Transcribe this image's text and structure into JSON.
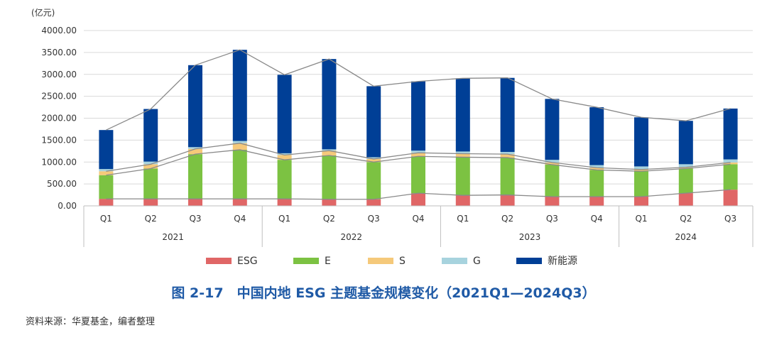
{
  "chart_data": {
    "type": "bar",
    "unit_label": "(亿元)",
    "categories": [
      "Q1",
      "Q2",
      "Q3",
      "Q4",
      "Q1",
      "Q2",
      "Q3",
      "Q4",
      "Q1",
      "Q2",
      "Q3",
      "Q4",
      "Q1",
      "Q2",
      "Q3"
    ],
    "year_groups": [
      {
        "label": "2021",
        "count": 4
      },
      {
        "label": "2022",
        "count": 4
      },
      {
        "label": "2023",
        "count": 4
      },
      {
        "label": "2024",
        "count": 3
      }
    ],
    "y_ticks": [
      "0.00",
      "500.00",
      "1000.00",
      "1500.00",
      "2000.00",
      "2500.00",
      "3000.00",
      "3500.00",
      "4000.00"
    ],
    "ylim": [
      0,
      4000
    ],
    "series": [
      {
        "name": "ESG",
        "color": "#e06666",
        "values": [
          160,
          160,
          160,
          160,
          160,
          150,
          150,
          290,
          240,
          250,
          210,
          210,
          210,
          290,
          370
        ]
      },
      {
        "name": "E",
        "color": "#7cc242",
        "values": [
          540,
          690,
          1020,
          1120,
          890,
          1000,
          850,
          840,
          870,
          850,
          730,
          610,
          580,
          560,
          580
        ]
      },
      {
        "name": "S",
        "color": "#f5c97a",
        "values": [
          90,
          100,
          120,
          150,
          110,
          110,
          70,
          80,
          80,
          80,
          50,
          50,
          40,
          30,
          40
        ]
      },
      {
        "name": "G",
        "color": "#a7d3de",
        "values": [
          50,
          60,
          40,
          50,
          40,
          30,
          40,
          50,
          50,
          50,
          60,
          60,
          70,
          70,
          70
        ]
      },
      {
        "name": "新能源",
        "color": "#003f96",
        "values": [
          890,
          1200,
          1870,
          2080,
          1790,
          2060,
          1620,
          1580,
          1670,
          1690,
          1390,
          1320,
          1120,
          990,
          1160
        ]
      }
    ],
    "caption": "图 2-17　中国内地 ESG 主题基金规模变化（2021Q1—2024Q3）",
    "source": "资料来源：华夏基金，编者整理"
  }
}
